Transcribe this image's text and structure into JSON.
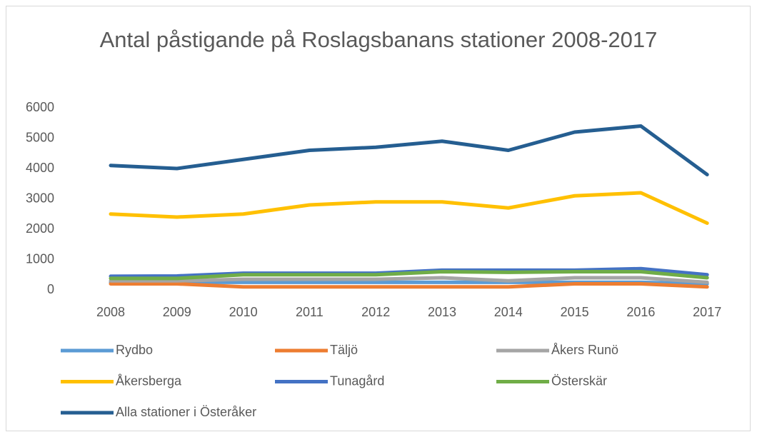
{
  "chart_data": {
    "type": "line",
    "title": "Antal påstigande på Roslagsbanans stationer 2008-2017",
    "categories": [
      "2008",
      "2009",
      "2010",
      "2011",
      "2012",
      "2013",
      "2014",
      "2015",
      "2016",
      "2017"
    ],
    "series": [
      {
        "name": "Rydbo",
        "color": "#5b9bd5",
        "values": [
          250,
          250,
          250,
          250,
          250,
          250,
          250,
          250,
          250,
          200
        ]
      },
      {
        "name": "Täljö",
        "color": "#ed7d31",
        "values": [
          200,
          200,
          100,
          100,
          100,
          100,
          100,
          200,
          200,
          100
        ]
      },
      {
        "name": "Åkers Runö",
        "color": "#a5a5a5",
        "values": [
          300,
          300,
          350,
          350,
          350,
          400,
          300,
          400,
          400,
          250
        ]
      },
      {
        "name": "Åkersberga",
        "color": "#ffc000",
        "values": [
          2500,
          2400,
          2500,
          2800,
          2900,
          2900,
          2700,
          3100,
          3200,
          2200
        ]
      },
      {
        "name": "Tunagård",
        "color": "#4472c4",
        "values": [
          450,
          460,
          550,
          550,
          550,
          650,
          650,
          650,
          700,
          500
        ]
      },
      {
        "name": "Österskär",
        "color": "#70ad47",
        "values": [
          380,
          380,
          500,
          500,
          500,
          600,
          580,
          600,
          600,
          400
        ]
      },
      {
        "name": "Alla stationer i Österåker",
        "color": "#255e91",
        "values": [
          4100,
          4000,
          4300,
          4600,
          4700,
          4900,
          4600,
          5200,
          5400,
          3800
        ]
      }
    ],
    "ylim": [
      0,
      6000
    ],
    "yticks": [
      0,
      1000,
      2000,
      3000,
      4000,
      5000,
      6000
    ],
    "grid": false,
    "legend": "bottom"
  }
}
